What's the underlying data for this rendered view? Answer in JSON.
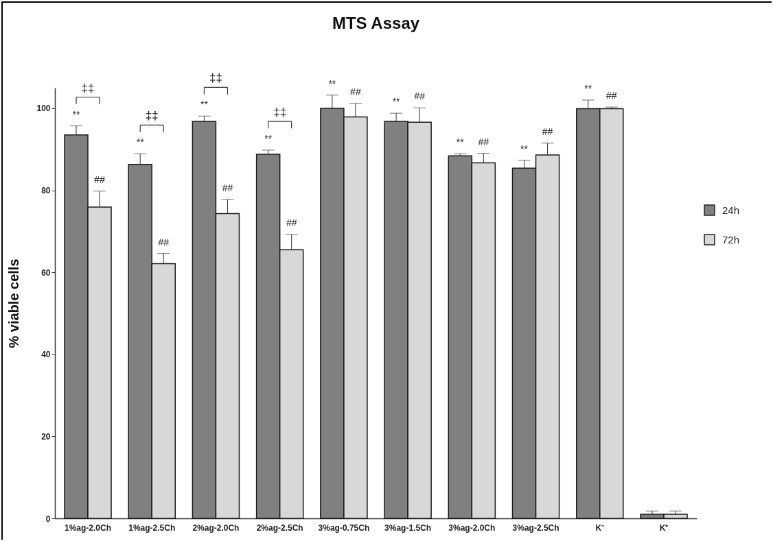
{
  "chart_data": {
    "type": "bar",
    "title": "MTS Assay",
    "ylabel": "% viable cells",
    "categories": [
      "1%ag-2.0Ch",
      "1%ag-2.5Ch",
      "2%ag-2.0Ch",
      "2%ag-2.5Ch",
      "3%ag-0.75Ch",
      "3%ag-1.5Ch",
      "3%ag-2.0Ch",
      "3%ag-2.5Ch",
      "K⁻",
      "K⁺"
    ],
    "series": [
      {
        "name": "24h",
        "color": "#808080",
        "values": [
          93.5,
          86.3,
          96.8,
          88.8,
          100.0,
          96.8,
          88.4,
          85.4,
          99.9,
          1.0
        ],
        "errors": [
          [
            93.5,
            95.7
          ],
          [
            86.3,
            88.9
          ],
          [
            96.8,
            98.1
          ],
          [
            88.8,
            89.8
          ],
          [
            100.0,
            103.2
          ],
          [
            96.8,
            98.8
          ],
          [
            88.4,
            88.9
          ],
          [
            85.4,
            87.3
          ],
          [
            99.9,
            102.0
          ],
          [
            1.0,
            1.8
          ]
        ],
        "value_labels": [
          "**",
          "**",
          "**",
          "**",
          "**",
          "**",
          "**",
          "**",
          "**",
          null
        ]
      },
      {
        "name": "72h",
        "color": "#d8d8d8",
        "values": [
          75.9,
          62.1,
          74.3,
          65.5,
          97.9,
          96.6,
          86.7,
          88.6,
          99.9,
          1.0
        ],
        "errors": [
          [
            75.9,
            79.8
          ],
          [
            62.1,
            64.6
          ],
          [
            74.3,
            77.8
          ],
          [
            65.5,
            69.2
          ],
          [
            97.9,
            101.2
          ],
          [
            96.6,
            100.1
          ],
          [
            86.7,
            89.0
          ],
          [
            88.6,
            91.5
          ],
          [
            99.9,
            100.3
          ],
          [
            1.0,
            1.8
          ]
        ],
        "value_labels": [
          "##",
          "##",
          "##",
          "##",
          "##",
          "##",
          "##",
          "##",
          "##",
          null
        ]
      }
    ],
    "annotations": [
      "‡‡",
      "‡‡",
      "‡‡",
      "‡‡"
    ],
    "ylim": [
      0,
      105
    ],
    "yticks": [
      0,
      20,
      40,
      60,
      80,
      100
    ],
    "grid": false,
    "legend": "right"
  }
}
